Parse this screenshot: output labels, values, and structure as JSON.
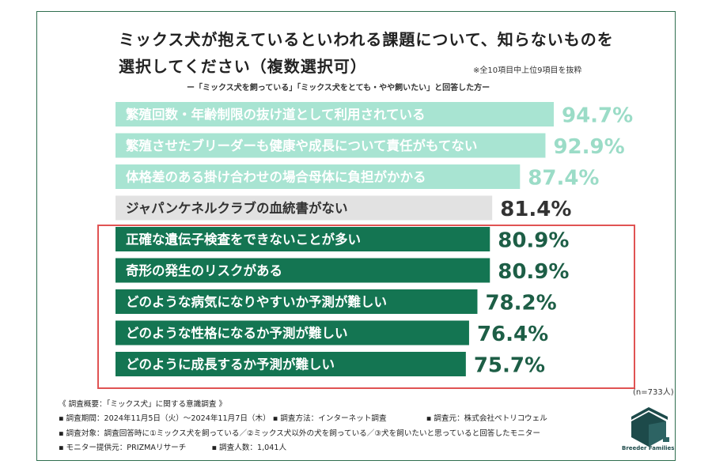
{
  "title_line1": "ミックス犬が抱えているといわれる課題について、知らないものを",
  "title_line2": "選択してください（複数選択可）",
  "note": "※全10項目中上位9項目を抜粋",
  "subtitle": "ー「ミックス犬を飼っている」「ミックス犬をとても・やや飼いたい」と回答した方ー",
  "sample_size": "(n=733人)",
  "colors": {
    "light_green": "#a8e4d2",
    "light_green_text": "#9bdcc7",
    "gray": "#e2e2e2",
    "dark_green": "#147552",
    "dark_text": "#1d5e46",
    "highlight_border": "#e05353"
  },
  "chart_data": {
    "type": "bar",
    "orientation": "horizontal",
    "unit": "%",
    "categories": [
      "繁殖回数・年齢制限の抜け道として利用されている",
      "繁殖させたブリーダーも健康や成長について責任がもてない",
      "体格差のある掛け合わせの場合母体に負担がかかる",
      "ジャパンケネルクラブの血統書がない",
      "正確な遺伝子検査をできないことが多い",
      "奇形の発生のリスクがある",
      "どのような病気になりやすいか予測が難しい",
      "どのような性格になるか予測が難しい",
      "どのように成長するか予測が難しい"
    ],
    "values": [
      94.7,
      92.9,
      87.4,
      81.4,
      80.9,
      80.9,
      78.2,
      76.4,
      75.7
    ],
    "value_labels": [
      "94.7%",
      "92.9%",
      "87.4%",
      "81.4%",
      "80.9%",
      "80.9%",
      "78.2%",
      "76.4%",
      "75.7%"
    ],
    "bar_style": [
      "light",
      "light",
      "light",
      "gray",
      "dark",
      "dark",
      "dark",
      "dark",
      "dark"
    ],
    "highlighted_items": [
      5,
      6,
      7,
      8,
      9
    ]
  },
  "footer": {
    "line0": "《 調査概要：「ミックス犬」に関する意識調査 》",
    "line1a": "▪ 調査期間：2024年11月5日（火）〜2024年11月7日（木） ▪ 調査方法：インターネット調査",
    "line1b": "▪ 調査元：株式会社ペトリコウェル",
    "line2": "▪ 調査対象：調査回答時に①ミックス犬を飼っている／②ミックス犬以外の犬を飼っている／③犬を飼いたいと思っていると回答したモニター",
    "line3a": "▪ モニター提供元：PRIZMAリサーチ",
    "line3b": "▪ 調査人数：1,041人"
  },
  "logo": {
    "icon": "breeder-families-logo-icon",
    "text": "Breeder Families"
  }
}
